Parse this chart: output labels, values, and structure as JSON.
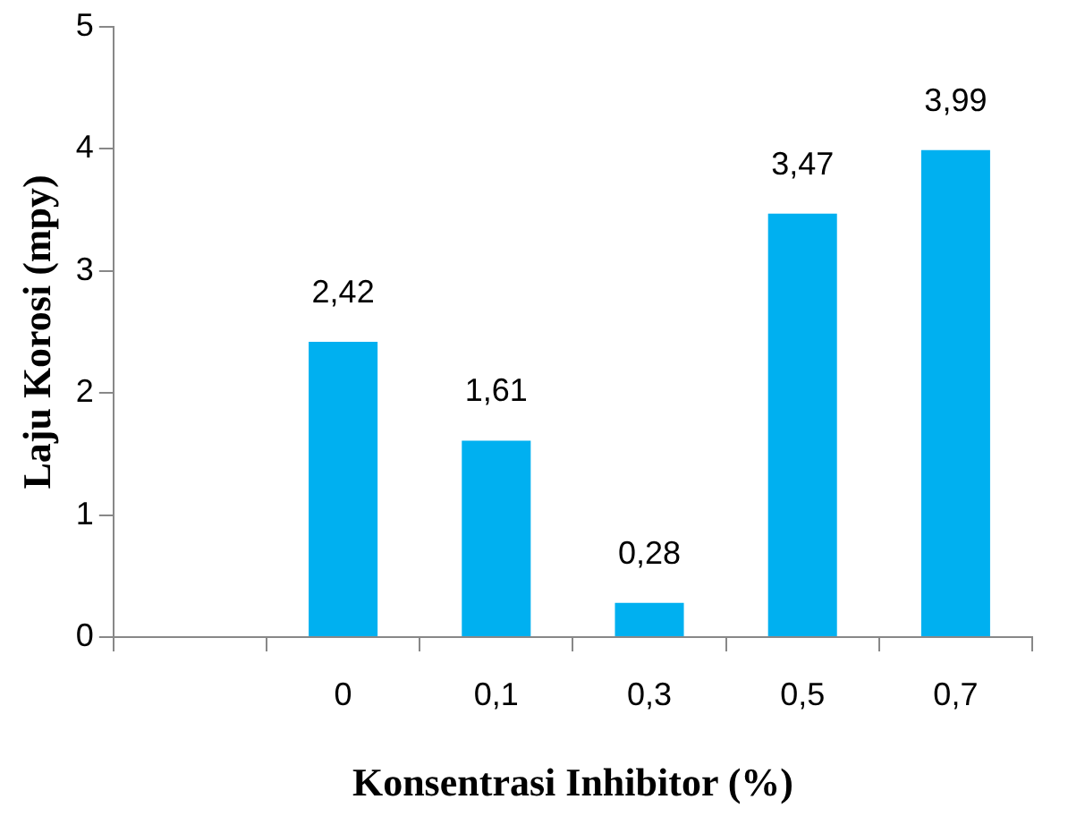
{
  "chart_data": {
    "type": "bar",
    "xlabel": "Konsentrasi Inhibitor (%)",
    "ylabel": "Laju Korosi (mpy)",
    "categories": [
      null,
      "0",
      "0,1",
      "0,3",
      "0,5",
      "0,7"
    ],
    "values": [
      null,
      2.42,
      1.61,
      0.28,
      3.47,
      3.99
    ],
    "value_labels": [
      null,
      "2,42",
      "1,61",
      "0,28",
      "3,47",
      "3,99"
    ],
    "color": "#00b0f0",
    "ylim": [
      0,
      5
    ],
    "yticks": [
      0,
      1,
      2,
      3,
      4,
      5
    ]
  }
}
